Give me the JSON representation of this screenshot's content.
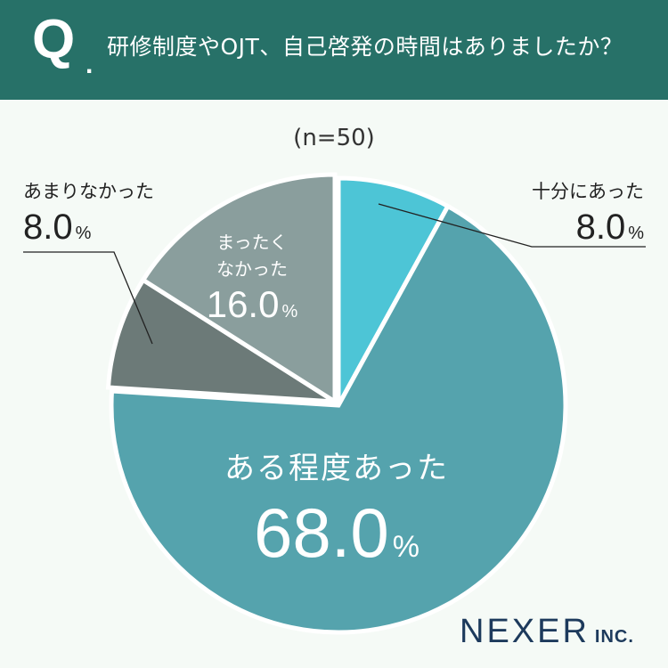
{
  "header": {
    "q_mark": "Q",
    "q_dot": ".",
    "question": "研修制度やOJT、自己啓発の時間はありましたか？"
  },
  "sample_size": "(n=50)",
  "chart_data": {
    "type": "pie",
    "start": "12 o'clock, clockwise",
    "slices": [
      {
        "label": "十分にあった",
        "value": 8.0,
        "display": "8.0",
        "unit": "%",
        "color": "#4dc5d6",
        "exploded": false
      },
      {
        "label": "ある程度あった",
        "value": 68.0,
        "display": "68.0",
        "unit": "%",
        "color": "#55a3ad",
        "exploded": false
      },
      {
        "label": "あまりなかった",
        "value": 8.0,
        "display": "8.0",
        "unit": "%",
        "color": "#6c7a78",
        "exploded": true
      },
      {
        "label": "まったくなかった",
        "value": 16.0,
        "display": "16.0",
        "unit": "%",
        "color": "#8a9e9d",
        "exploded": true
      }
    ],
    "inner_labels": {
      "major": {
        "line1": "ある程度あった",
        "value": "68.0",
        "unit": "%"
      },
      "none": {
        "line1": "まったく",
        "line2": "なかった",
        "value": "16.0",
        "unit": "%"
      }
    },
    "outer_labels": {
      "enough": {
        "label": "十分にあった",
        "value": "8.0",
        "unit": "%"
      },
      "little": {
        "label": "あまりなかった",
        "value": "8.0",
        "unit": "%"
      }
    }
  },
  "logo": {
    "main": "NEXER",
    "sub": "INC."
  }
}
